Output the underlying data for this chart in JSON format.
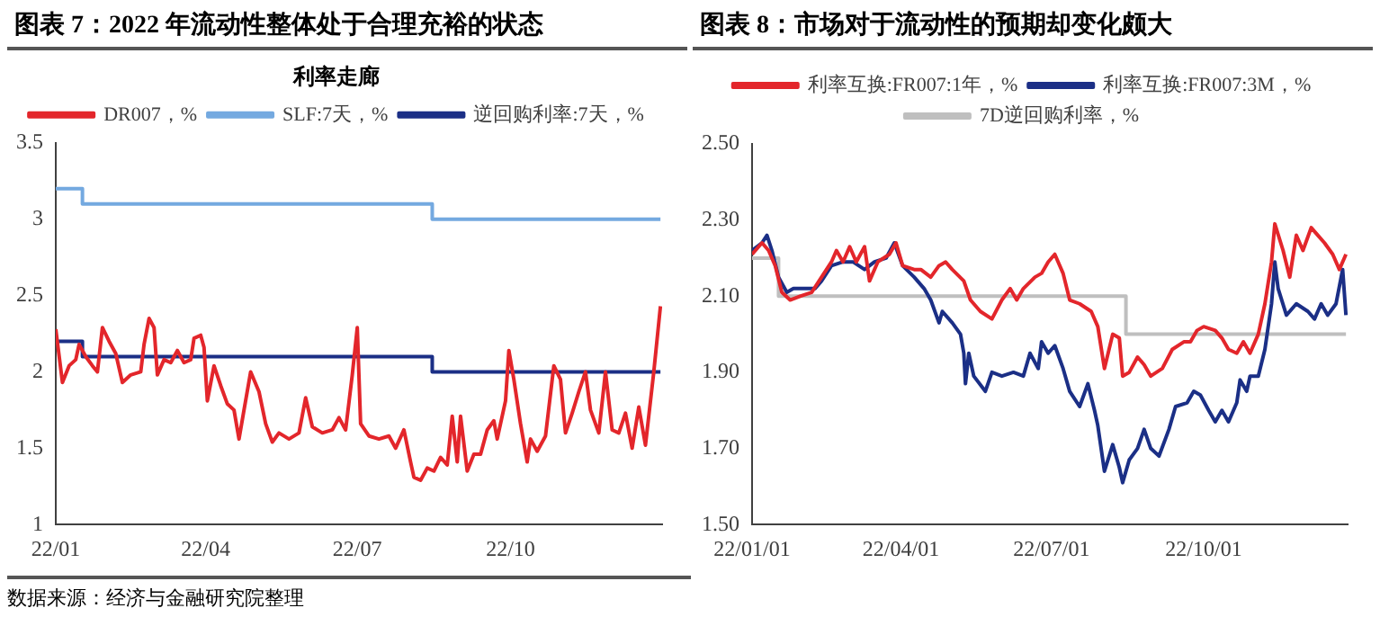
{
  "chart_data": [
    {
      "type": "line",
      "title": "图表 7：2022 年流动性整体处于合理充裕的状态",
      "subtitle": "利率走廊",
      "xlim": [
        "2022-01-01",
        "2022-12-31"
      ],
      "xticks": [
        {
          "value": "2022-01-01",
          "label": "22/01"
        },
        {
          "value": "2022-04-01",
          "label": "22/04"
        },
        {
          "value": "2022-07-01",
          "label": "22/07"
        },
        {
          "value": "2022-10-01",
          "label": "22/10"
        }
      ],
      "ylim": [
        1,
        3.5
      ],
      "yticks": [
        1,
        1.5,
        2,
        2.5,
        3,
        3.5
      ],
      "grid": false,
      "legend": "top",
      "marker": "none",
      "line_style": "solid",
      "annotations": [
        "数据来源：经济与金融研究院整理"
      ],
      "series": [
        {
          "name": "DR007，%",
          "color": "#e3262b",
          "x": [
            "2022-01-01",
            "2022-01-05",
            "2022-01-09",
            "2022-01-13",
            "2022-01-15",
            "2022-01-19",
            "2022-01-23",
            "2022-01-26",
            "2022-01-29",
            "2022-02-02",
            "2022-02-06",
            "2022-02-10",
            "2022-02-15",
            "2022-02-21",
            "2022-02-23",
            "2022-02-26",
            "2022-03-01",
            "2022-03-03",
            "2022-03-07",
            "2022-03-11",
            "2022-03-15",
            "2022-03-19",
            "2022-03-23",
            "2022-03-25",
            "2022-03-29",
            "2022-03-31",
            "2022-04-02",
            "2022-04-06",
            "2022-04-10",
            "2022-04-14",
            "2022-04-18",
            "2022-04-21",
            "2022-04-24",
            "2022-04-28",
            "2022-05-03",
            "2022-05-07",
            "2022-05-11",
            "2022-05-15",
            "2022-05-21",
            "2022-05-27",
            "2022-05-31",
            "2022-06-04",
            "2022-06-10",
            "2022-06-16",
            "2022-06-20",
            "2022-06-24",
            "2022-06-28",
            "2022-07-01",
            "2022-07-03",
            "2022-07-08",
            "2022-07-14",
            "2022-07-20",
            "2022-07-24",
            "2022-07-29",
            "2022-08-02",
            "2022-08-04",
            "2022-08-08",
            "2022-08-12",
            "2022-08-16",
            "2022-08-20",
            "2022-08-24",
            "2022-08-27",
            "2022-08-30",
            "2022-09-01",
            "2022-09-05",
            "2022-09-09",
            "2022-09-13",
            "2022-09-17",
            "2022-09-21",
            "2022-09-23",
            "2022-09-28",
            "2022-09-30",
            "2022-10-03",
            "2022-10-07",
            "2022-10-11",
            "2022-10-13",
            "2022-10-17",
            "2022-10-22",
            "2022-10-27",
            "2022-10-31",
            "2022-11-03",
            "2022-11-07",
            "2022-11-11",
            "2022-11-15",
            "2022-11-18",
            "2022-11-23",
            "2022-11-27",
            "2022-12-01",
            "2022-12-05",
            "2022-12-09",
            "2022-12-13",
            "2022-12-17",
            "2022-12-21",
            "2022-12-26",
            "2022-12-30"
          ],
          "values": [
            2.28,
            1.93,
            2.04,
            2.08,
            2.18,
            2.1,
            2.04,
            2.0,
            2.29,
            2.2,
            2.12,
            1.93,
            1.98,
            2.0,
            2.18,
            2.35,
            2.29,
            1.98,
            2.08,
            2.06,
            2.14,
            2.06,
            2.08,
            2.22,
            2.24,
            2.16,
            1.81,
            2.04,
            1.91,
            1.79,
            1.75,
            1.56,
            1.75,
            2.0,
            1.87,
            1.66,
            1.54,
            1.6,
            1.56,
            1.6,
            1.83,
            1.64,
            1.6,
            1.62,
            1.7,
            1.62,
            1.98,
            2.29,
            1.66,
            1.58,
            1.56,
            1.58,
            1.5,
            1.62,
            1.41,
            1.31,
            1.29,
            1.37,
            1.35,
            1.44,
            1.39,
            1.71,
            1.41,
            1.71,
            1.35,
            1.46,
            1.46,
            1.62,
            1.68,
            1.56,
            1.81,
            2.14,
            1.95,
            1.66,
            1.41,
            1.56,
            1.48,
            1.58,
            2.04,
            1.95,
            1.6,
            1.73,
            1.87,
            2.0,
            1.75,
            1.6,
            2.0,
            1.62,
            1.6,
            1.73,
            1.5,
            1.77,
            1.52,
            2.0,
            2.43
          ]
        },
        {
          "name": "SLF:7天，%",
          "color": "#74a9e0",
          "type": "step",
          "x": [
            "2022-01-01",
            "2022-01-17",
            "2022-08-15",
            "2022-12-30"
          ],
          "values": [
            3.2,
            3.1,
            3.0,
            3.0
          ]
        },
        {
          "name": "逆回购利率:7天，%",
          "color": "#1b2f86",
          "type": "step",
          "x": [
            "2022-01-01",
            "2022-01-17",
            "2022-08-15",
            "2022-12-30"
          ],
          "values": [
            2.2,
            2.1,
            2.0,
            2.0
          ]
        }
      ]
    },
    {
      "type": "line",
      "title": "图表 8：市场对于流动性的预期却变化颇大",
      "xlim": [
        "2022-01-01",
        "2022-12-27"
      ],
      "xticks": [
        {
          "value": "2022-01-01",
          "label": "22/01/01"
        },
        {
          "value": "2022-04-01",
          "label": "22/04/01"
        },
        {
          "value": "2022-07-01",
          "label": "22/07/01"
        },
        {
          "value": "2022-10-01",
          "label": "22/10/01"
        }
      ],
      "ylim": [
        1.5,
        2.5
      ],
      "yticks": [
        {
          "value": 1.5,
          "label": "1.50"
        },
        {
          "value": 1.7,
          "label": "1.70"
        },
        {
          "value": 1.9,
          "label": "1.90"
        },
        {
          "value": 2.1,
          "label": "2.10"
        },
        {
          "value": 2.3,
          "label": "2.30"
        },
        {
          "value": 2.5,
          "label": "2.50"
        }
      ],
      "grid": false,
      "legend": "top",
      "marker": "none",
      "line_style": "solid",
      "series": [
        {
          "name": "利率互换:FR007:1年，%",
          "color": "#e3262b",
          "x": [
            "2022-01-01",
            "2022-01-07",
            "2022-01-11",
            "2022-01-15",
            "2022-01-19",
            "2022-01-24",
            "2022-01-30",
            "2022-02-06",
            "2022-02-12",
            "2022-02-18",
            "2022-02-21",
            "2022-02-25",
            "2022-03-01",
            "2022-03-05",
            "2022-03-10",
            "2022-03-13",
            "2022-03-18",
            "2022-03-25",
            "2022-03-29",
            "2022-04-02",
            "2022-04-09",
            "2022-04-13",
            "2022-04-19",
            "2022-04-24",
            "2022-04-28",
            "2022-05-02",
            "2022-05-09",
            "2022-05-13",
            "2022-05-19",
            "2022-05-26",
            "2022-06-01",
            "2022-06-06",
            "2022-06-10",
            "2022-06-14",
            "2022-06-21",
            "2022-06-25",
            "2022-06-29",
            "2022-07-03",
            "2022-07-08",
            "2022-07-12",
            "2022-07-18",
            "2022-07-25",
            "2022-07-29",
            "2022-08-02",
            "2022-08-07",
            "2022-08-11",
            "2022-08-13",
            "2022-08-17",
            "2022-08-22",
            "2022-08-26",
            "2022-08-30",
            "2022-09-06",
            "2022-09-12",
            "2022-09-19",
            "2022-09-23",
            "2022-09-27",
            "2022-10-01",
            "2022-10-08",
            "2022-10-12",
            "2022-10-16",
            "2022-10-21",
            "2022-10-25",
            "2022-10-29",
            "2022-11-03",
            "2022-11-07",
            "2022-11-11",
            "2022-11-13",
            "2022-11-18",
            "2022-11-22",
            "2022-11-26",
            "2022-11-30",
            "2022-12-05",
            "2022-12-09",
            "2022-12-13",
            "2022-12-18",
            "2022-12-22",
            "2022-12-26"
          ],
          "values": [
            2.21,
            2.24,
            2.22,
            2.18,
            2.11,
            2.09,
            2.1,
            2.11,
            2.15,
            2.19,
            2.22,
            2.19,
            2.23,
            2.19,
            2.23,
            2.14,
            2.19,
            2.21,
            2.24,
            2.18,
            2.17,
            2.17,
            2.15,
            2.18,
            2.19,
            2.17,
            2.14,
            2.09,
            2.06,
            2.04,
            2.09,
            2.12,
            2.09,
            2.12,
            2.15,
            2.16,
            2.19,
            2.21,
            2.16,
            2.09,
            2.08,
            2.06,
            2.02,
            1.91,
            2.0,
            1.99,
            1.89,
            1.9,
            1.94,
            1.92,
            1.89,
            1.91,
            1.96,
            1.98,
            1.98,
            2.01,
            2.02,
            2.01,
            1.99,
            1.96,
            1.95,
            1.98,
            1.95,
            2.0,
            2.08,
            2.19,
            2.29,
            2.22,
            2.15,
            2.26,
            2.22,
            2.28,
            2.26,
            2.24,
            2.21,
            2.17,
            2.21
          ]
        },
        {
          "name": "利率互换:FR007:3M，%",
          "color": "#1b2f86",
          "x": [
            "2022-01-01",
            "2022-01-07",
            "2022-01-10",
            "2022-01-13",
            "2022-01-17",
            "2022-01-22",
            "2022-01-26",
            "2022-02-01",
            "2022-02-08",
            "2022-02-12",
            "2022-02-18",
            "2022-02-25",
            "2022-03-03",
            "2022-03-10",
            "2022-03-16",
            "2022-03-23",
            "2022-03-28",
            "2022-04-02",
            "2022-04-09",
            "2022-04-15",
            "2022-04-19",
            "2022-04-24",
            "2022-04-26",
            "2022-05-02",
            "2022-05-07",
            "2022-05-09",
            "2022-05-10",
            "2022-05-12",
            "2022-05-15",
            "2022-05-22",
            "2022-05-26",
            "2022-06-01",
            "2022-06-08",
            "2022-06-14",
            "2022-06-18",
            "2022-06-23",
            "2022-06-25",
            "2022-06-29",
            "2022-07-03",
            "2022-07-08",
            "2022-07-12",
            "2022-07-18",
            "2022-07-23",
            "2022-07-27",
            "2022-07-29",
            "2022-08-02",
            "2022-08-07",
            "2022-08-11",
            "2022-08-13",
            "2022-08-17",
            "2022-08-22",
            "2022-08-26",
            "2022-08-30",
            "2022-09-04",
            "2022-09-10",
            "2022-09-14",
            "2022-09-21",
            "2022-09-25",
            "2022-09-29",
            "2022-10-04",
            "2022-10-08",
            "2022-10-12",
            "2022-10-16",
            "2022-10-21",
            "2022-10-23",
            "2022-10-27",
            "2022-10-29",
            "2022-11-03",
            "2022-11-07",
            "2022-11-11",
            "2022-11-13",
            "2022-11-15",
            "2022-11-20",
            "2022-11-26",
            "2022-12-03",
            "2022-12-07",
            "2022-12-11",
            "2022-12-15",
            "2022-12-20",
            "2022-12-24",
            "2022-12-26"
          ],
          "values": [
            2.22,
            2.24,
            2.26,
            2.22,
            2.15,
            2.11,
            2.12,
            2.12,
            2.12,
            2.14,
            2.18,
            2.19,
            2.19,
            2.17,
            2.19,
            2.2,
            2.24,
            2.18,
            2.15,
            2.12,
            2.09,
            2.03,
            2.06,
            2.03,
            2.0,
            1.95,
            1.87,
            1.95,
            1.89,
            1.85,
            1.9,
            1.89,
            1.9,
            1.89,
            1.95,
            1.91,
            1.98,
            1.95,
            1.97,
            1.91,
            1.85,
            1.81,
            1.87,
            1.8,
            1.76,
            1.64,
            1.71,
            1.65,
            1.61,
            1.67,
            1.7,
            1.75,
            1.7,
            1.68,
            1.75,
            1.81,
            1.82,
            1.85,
            1.84,
            1.8,
            1.77,
            1.8,
            1.77,
            1.82,
            1.88,
            1.85,
            1.89,
            1.89,
            1.96,
            2.08,
            2.19,
            2.12,
            2.05,
            2.08,
            2.06,
            2.04,
            2.08,
            2.05,
            2.08,
            2.17,
            2.05
          ]
        },
        {
          "name": "7D逆回购利率，%",
          "color": "#bfbfbf",
          "type": "step",
          "x": [
            "2022-01-01",
            "2022-01-17",
            "2022-08-15",
            "2022-12-26"
          ],
          "values": [
            2.2,
            2.1,
            2.0,
            2.0
          ]
        }
      ]
    }
  ]
}
